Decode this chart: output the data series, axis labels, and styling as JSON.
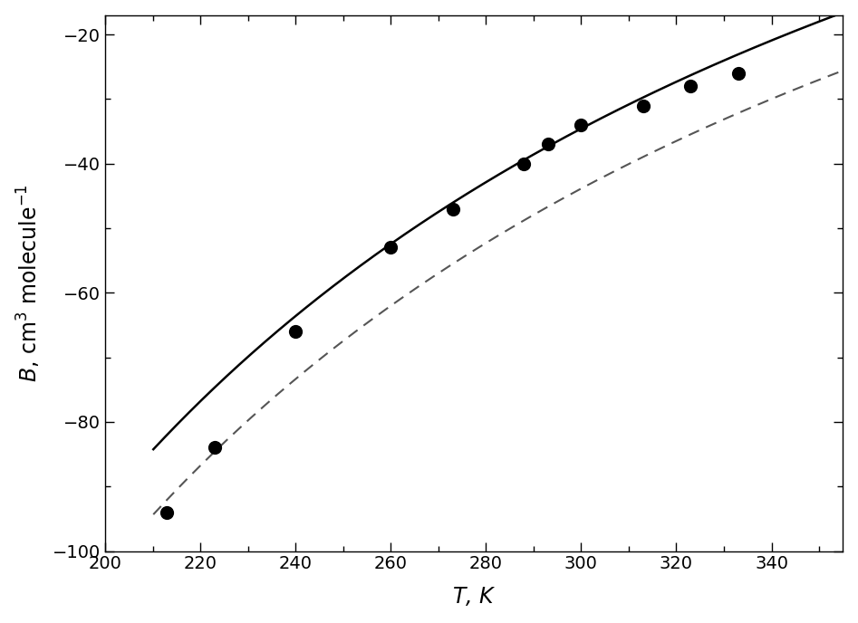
{
  "scatter_x": [
    213,
    223,
    240,
    260,
    273,
    288,
    293,
    300,
    313,
    323,
    333
  ],
  "scatter_y": [
    -94,
    -84,
    -66,
    -53,
    -47,
    -40,
    -37,
    -34,
    -31,
    -28,
    -26
  ],
  "xlim": [
    200,
    355
  ],
  "ylim": [
    -100,
    -17
  ],
  "xticks": [
    200,
    220,
    240,
    260,
    280,
    300,
    320,
    340
  ],
  "yticks": [
    -100,
    -80,
    -60,
    -40,
    -20
  ],
  "xlabel": "$T$, K",
  "ylabel": "$B$, cm$^{3}$ molecule$^{-1}$",
  "scatter_color": "#000000",
  "scatter_size": 120,
  "solid_color": "#000000",
  "dashed_color": "#555555",
  "background_color": "#ffffff",
  "label_fontsize": 17,
  "tick_fontsize": 14,
  "solid_a": 134.0,
  "solid_b": -46000.0,
  "dashed_a": 119.0,
  "dashed_b": -51500.0
}
